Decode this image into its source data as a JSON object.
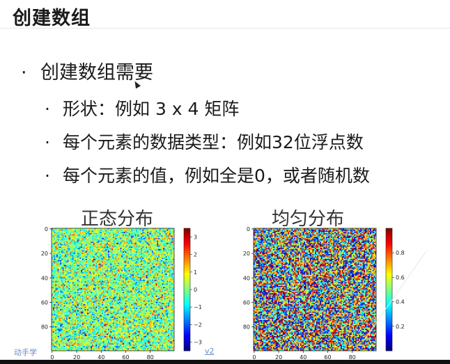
{
  "slide": {
    "title": "创建数组",
    "bullets": [
      {
        "text": "创建数组需要"
      },
      {
        "text": "形状：例如 3 x 4 矩阵"
      },
      {
        "text": "每个元素的数据类型：例如32位浮点数"
      },
      {
        "text": "每个元素的值，例如全是0，或者随机数"
      }
    ],
    "bullet_glyph": "·"
  },
  "icons": {
    "cursor": "mouse-pointer-icon"
  },
  "watermarks": {
    "left": "动手学",
    "right": "v2"
  },
  "chart_data": [
    {
      "type": "heatmap",
      "title": "正态分布",
      "x_ticks": [
        "0",
        "20",
        "40",
        "60",
        "80"
      ],
      "y_ticks": [
        "0",
        "20",
        "40",
        "60",
        "80"
      ],
      "grid_size": [
        100,
        100
      ],
      "colorbar_ticks": [
        "3",
        "2",
        "1",
        "0",
        "−1",
        "−2",
        "−3"
      ],
      "value_range": [
        -3.5,
        3.5
      ],
      "distribution": "normal",
      "colormap": "jet"
    },
    {
      "type": "heatmap",
      "title": "均匀分布",
      "x_ticks": [
        "0",
        "20",
        "40",
        "60",
        "80"
      ],
      "y_ticks": [
        "0",
        "20",
        "40",
        "60",
        "80"
      ],
      "grid_size": [
        100,
        100
      ],
      "colorbar_ticks": [
        "0.8",
        "0.6",
        "0.4",
        "0.2"
      ],
      "value_range": [
        0,
        1
      ],
      "distribution": "uniform",
      "colormap": "jet"
    }
  ]
}
